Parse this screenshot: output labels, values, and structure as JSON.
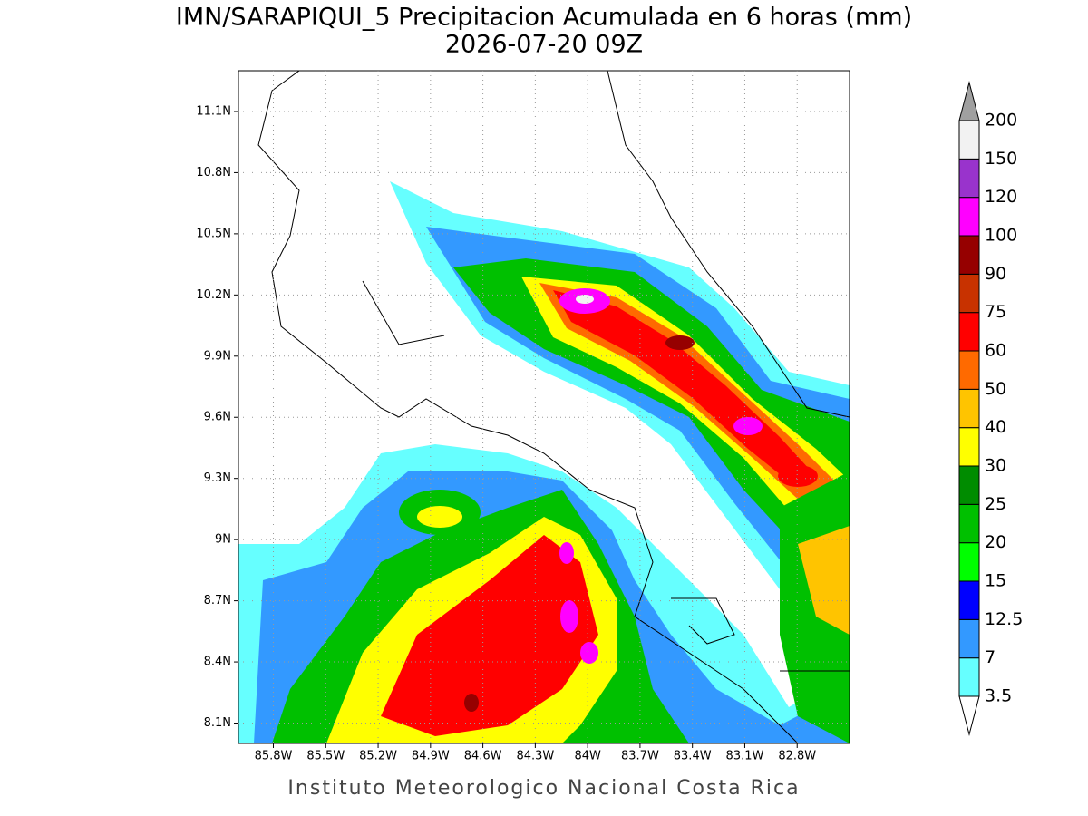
{
  "header": {
    "line1": "IMN/SARAPIQUI_5 Precipitacion Acumulada en 6 horas (mm)",
    "line2": "2026-07-20 09Z"
  },
  "map": {
    "xlim": [
      -86.0,
      -82.5
    ],
    "ylim": [
      8.0,
      11.3
    ],
    "lon_ticks": [
      {
        "value": -85.8,
        "label": "85.8W"
      },
      {
        "value": -85.5,
        "label": "85.5W"
      },
      {
        "value": -85.2,
        "label": "85.2W"
      },
      {
        "value": -84.9,
        "label": "84.9W"
      },
      {
        "value": -84.6,
        "label": "84.6W"
      },
      {
        "value": -84.3,
        "label": "84.3W"
      },
      {
        "value": -84.0,
        "label": "84W"
      },
      {
        "value": -83.7,
        "label": "83.7W"
      },
      {
        "value": -83.4,
        "label": "83.4W"
      },
      {
        "value": -83.1,
        "label": "83.1W"
      },
      {
        "value": -82.8,
        "label": "82.8W"
      }
    ],
    "lat_ticks": [
      {
        "value": 8.1,
        "label": "8.1N"
      },
      {
        "value": 8.4,
        "label": "8.4N"
      },
      {
        "value": 8.7,
        "label": "8.7N"
      },
      {
        "value": 9.0,
        "label": "9N"
      },
      {
        "value": 9.3,
        "label": "9.3N"
      },
      {
        "value": 9.6,
        "label": "9.6N"
      },
      {
        "value": 9.9,
        "label": "9.9N"
      },
      {
        "value": 10.2,
        "label": "10.2N"
      },
      {
        "value": 10.5,
        "label": "10.5N"
      },
      {
        "value": 10.8,
        "label": "10.8N"
      },
      {
        "value": 11.1,
        "label": "11.1N"
      }
    ]
  },
  "colorbar": {
    "levels": [
      3.5,
      7,
      12.5,
      15,
      20,
      25,
      30,
      40,
      50,
      60,
      75,
      90,
      100,
      120,
      150,
      200
    ],
    "colors": [
      "#66ffff",
      "#3399ff",
      "#0000ff",
      "#00ff00",
      "#00c000",
      "#008c00",
      "#ffff00",
      "#ffc400",
      "#ff6a00",
      "#ff0000",
      "#c83200",
      "#960000",
      "#ff00ff",
      "#9933cc",
      "#f2f2f2"
    ],
    "under_color": "#ffffff",
    "over_color": "#a0a0a0"
  },
  "footer": "Instituto Meteorologico Nacional Costa Rica"
}
